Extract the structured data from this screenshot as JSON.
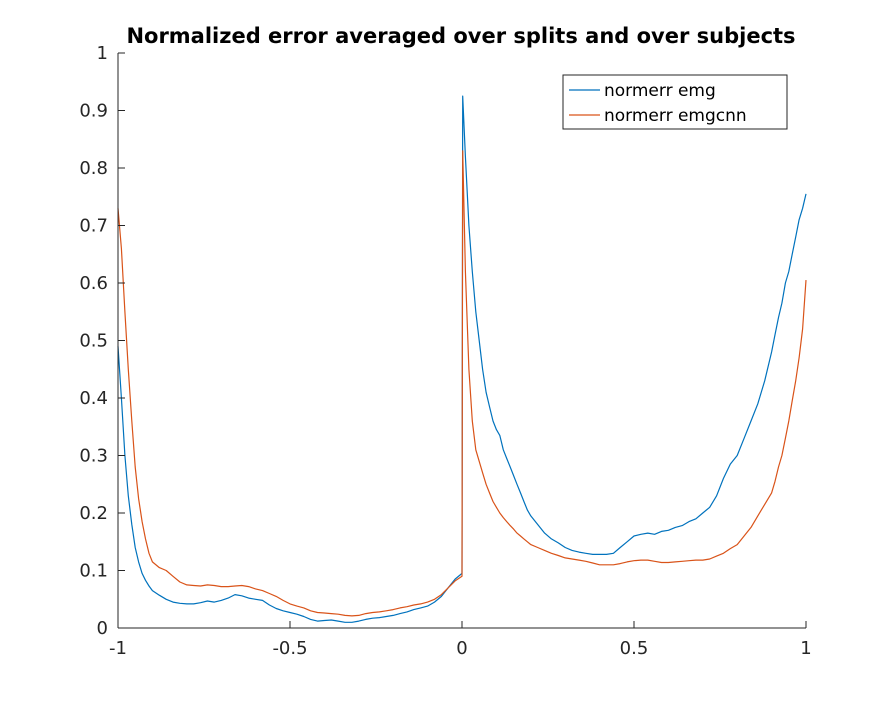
{
  "chart_data": {
    "type": "line",
    "title": "Normalized error averaged over splits and over subjects",
    "xlabel": "",
    "ylabel": "",
    "xlim": [
      -1,
      1
    ],
    "ylim": [
      0,
      1
    ],
    "xticks": [
      -1,
      -0.5,
      0,
      0.5,
      1
    ],
    "xtick_labels": [
      "-1",
      "-0.5",
      "0",
      "0.5",
      "1"
    ],
    "yticks": [
      0,
      0.1,
      0.2,
      0.3,
      0.4,
      0.5,
      0.6,
      0.7,
      0.8,
      0.9,
      1
    ],
    "ytick_labels": [
      "0",
      "0.1",
      "0.2",
      "0.3",
      "0.4",
      "0.5",
      "0.6",
      "0.7",
      "0.8",
      "0.9",
      "1"
    ],
    "grid": false,
    "legend_position": "top-right",
    "series": [
      {
        "name": "normerr emg",
        "color": "#0072BD",
        "x": [
          -1.0,
          -0.99,
          -0.98,
          -0.97,
          -0.96,
          -0.95,
          -0.94,
          -0.93,
          -0.92,
          -0.91,
          -0.9,
          -0.88,
          -0.86,
          -0.84,
          -0.82,
          -0.8,
          -0.78,
          -0.76,
          -0.74,
          -0.72,
          -0.7,
          -0.68,
          -0.66,
          -0.64,
          -0.62,
          -0.6,
          -0.58,
          -0.56,
          -0.54,
          -0.52,
          -0.5,
          -0.48,
          -0.46,
          -0.44,
          -0.42,
          -0.4,
          -0.38,
          -0.36,
          -0.34,
          -0.32,
          -0.3,
          -0.28,
          -0.26,
          -0.24,
          -0.22,
          -0.2,
          -0.18,
          -0.16,
          -0.14,
          -0.12,
          -0.1,
          -0.08,
          -0.06,
          -0.04,
          -0.02,
          0.0,
          0.002,
          0.01,
          0.02,
          0.03,
          0.04,
          0.05,
          0.06,
          0.07,
          0.08,
          0.09,
          0.1,
          0.11,
          0.12,
          0.13,
          0.14,
          0.15,
          0.16,
          0.17,
          0.18,
          0.19,
          0.2,
          0.22,
          0.24,
          0.26,
          0.28,
          0.3,
          0.32,
          0.34,
          0.36,
          0.38,
          0.4,
          0.42,
          0.44,
          0.46,
          0.48,
          0.5,
          0.52,
          0.54,
          0.56,
          0.58,
          0.6,
          0.62,
          0.64,
          0.66,
          0.68,
          0.7,
          0.72,
          0.74,
          0.76,
          0.78,
          0.8,
          0.82,
          0.84,
          0.86,
          0.88,
          0.9,
          0.91,
          0.92,
          0.93,
          0.94,
          0.95,
          0.96,
          0.97,
          0.98,
          0.99,
          1.0
        ],
        "y": [
          0.49,
          0.4,
          0.3,
          0.23,
          0.18,
          0.14,
          0.115,
          0.095,
          0.083,
          0.073,
          0.065,
          0.057,
          0.05,
          0.045,
          0.043,
          0.042,
          0.042,
          0.044,
          0.047,
          0.045,
          0.048,
          0.052,
          0.058,
          0.056,
          0.052,
          0.05,
          0.048,
          0.04,
          0.034,
          0.03,
          0.027,
          0.024,
          0.02,
          0.015,
          0.012,
          0.013,
          0.014,
          0.012,
          0.01,
          0.01,
          0.012,
          0.015,
          0.017,
          0.018,
          0.02,
          0.022,
          0.025,
          0.028,
          0.032,
          0.035,
          0.038,
          0.045,
          0.055,
          0.07,
          0.085,
          0.095,
          0.925,
          0.82,
          0.7,
          0.62,
          0.55,
          0.5,
          0.45,
          0.41,
          0.385,
          0.36,
          0.345,
          0.335,
          0.31,
          0.295,
          0.28,
          0.265,
          0.25,
          0.235,
          0.22,
          0.205,
          0.195,
          0.18,
          0.165,
          0.155,
          0.148,
          0.14,
          0.135,
          0.132,
          0.13,
          0.128,
          0.128,
          0.128,
          0.13,
          0.14,
          0.15,
          0.16,
          0.163,
          0.165,
          0.163,
          0.168,
          0.17,
          0.175,
          0.178,
          0.185,
          0.19,
          0.2,
          0.21,
          0.23,
          0.26,
          0.285,
          0.3,
          0.33,
          0.36,
          0.39,
          0.43,
          0.48,
          0.51,
          0.54,
          0.565,
          0.6,
          0.62,
          0.65,
          0.68,
          0.71,
          0.73,
          0.755
        ]
      },
      {
        "name": "normerr emgcnn",
        "color": "#D95319",
        "x": [
          -1.0,
          -0.99,
          -0.98,
          -0.97,
          -0.96,
          -0.95,
          -0.94,
          -0.93,
          -0.92,
          -0.91,
          -0.9,
          -0.88,
          -0.86,
          -0.84,
          -0.82,
          -0.8,
          -0.78,
          -0.76,
          -0.74,
          -0.72,
          -0.7,
          -0.68,
          -0.66,
          -0.64,
          -0.62,
          -0.6,
          -0.58,
          -0.56,
          -0.54,
          -0.52,
          -0.5,
          -0.48,
          -0.46,
          -0.44,
          -0.42,
          -0.4,
          -0.38,
          -0.36,
          -0.34,
          -0.32,
          -0.3,
          -0.28,
          -0.26,
          -0.24,
          -0.22,
          -0.2,
          -0.18,
          -0.16,
          -0.14,
          -0.12,
          -0.1,
          -0.08,
          -0.06,
          -0.04,
          -0.02,
          0.0,
          0.002,
          0.01,
          0.02,
          0.03,
          0.04,
          0.05,
          0.06,
          0.07,
          0.08,
          0.09,
          0.1,
          0.11,
          0.12,
          0.13,
          0.14,
          0.15,
          0.16,
          0.17,
          0.18,
          0.19,
          0.2,
          0.22,
          0.24,
          0.26,
          0.28,
          0.3,
          0.32,
          0.34,
          0.36,
          0.38,
          0.4,
          0.42,
          0.44,
          0.46,
          0.48,
          0.5,
          0.52,
          0.54,
          0.56,
          0.58,
          0.6,
          0.62,
          0.64,
          0.66,
          0.68,
          0.7,
          0.72,
          0.74,
          0.76,
          0.78,
          0.8,
          0.82,
          0.84,
          0.86,
          0.88,
          0.9,
          0.91,
          0.92,
          0.93,
          0.94,
          0.95,
          0.96,
          0.97,
          0.98,
          0.99,
          1.0
        ],
        "y": [
          0.73,
          0.66,
          0.55,
          0.45,
          0.36,
          0.28,
          0.225,
          0.185,
          0.155,
          0.13,
          0.115,
          0.105,
          0.1,
          0.09,
          0.08,
          0.075,
          0.074,
          0.073,
          0.075,
          0.074,
          0.072,
          0.072,
          0.073,
          0.074,
          0.072,
          0.068,
          0.065,
          0.06,
          0.055,
          0.048,
          0.042,
          0.038,
          0.035,
          0.03,
          0.027,
          0.026,
          0.025,
          0.024,
          0.022,
          0.021,
          0.022,
          0.025,
          0.027,
          0.028,
          0.03,
          0.032,
          0.035,
          0.037,
          0.04,
          0.042,
          0.045,
          0.05,
          0.058,
          0.07,
          0.082,
          0.09,
          0.83,
          0.62,
          0.45,
          0.36,
          0.31,
          0.29,
          0.27,
          0.25,
          0.235,
          0.22,
          0.21,
          0.2,
          0.192,
          0.185,
          0.178,
          0.172,
          0.165,
          0.16,
          0.155,
          0.15,
          0.145,
          0.14,
          0.135,
          0.13,
          0.126,
          0.122,
          0.12,
          0.118,
          0.116,
          0.113,
          0.11,
          0.11,
          0.11,
          0.112,
          0.115,
          0.117,
          0.118,
          0.118,
          0.116,
          0.114,
          0.114,
          0.115,
          0.116,
          0.117,
          0.118,
          0.118,
          0.12,
          0.125,
          0.13,
          0.138,
          0.145,
          0.16,
          0.175,
          0.195,
          0.215,
          0.235,
          0.255,
          0.28,
          0.3,
          0.33,
          0.36,
          0.395,
          0.43,
          0.47,
          0.52,
          0.605
        ]
      }
    ]
  }
}
